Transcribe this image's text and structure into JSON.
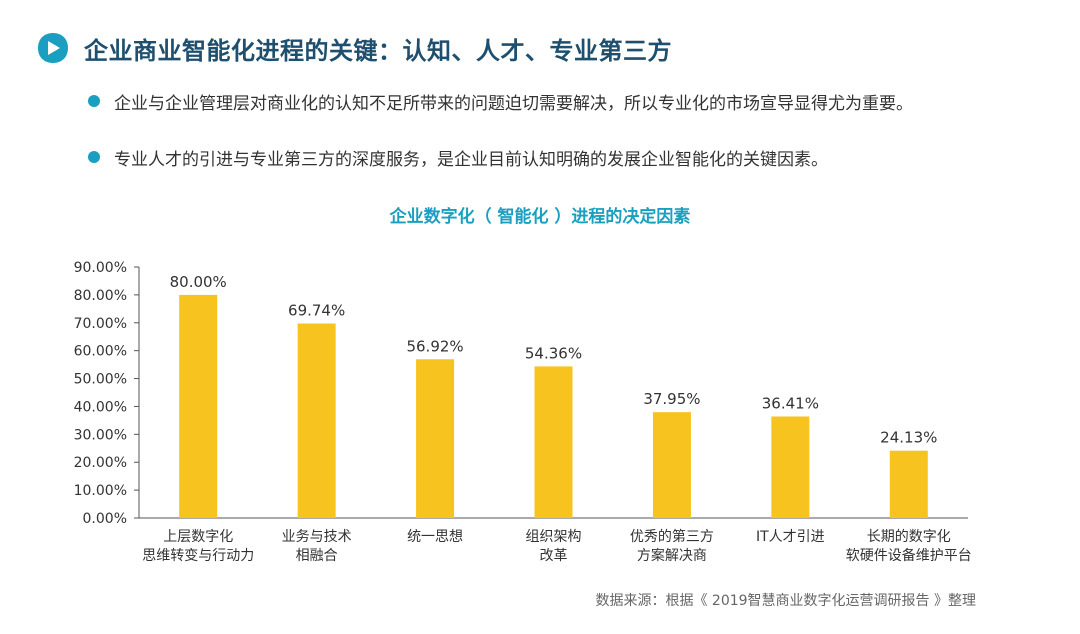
{
  "header": {
    "title": "企业商业智能化进程的关键：认知、人才、专业第三方",
    "icon": "play-badge-icon",
    "accent_color": "#1a9fc0"
  },
  "bullets": [
    {
      "text": "企业与企业管理层对商业化的认知不足所带来的问题迫切需要解决，所以专业化的市场宣导显得尤为重要。"
    },
    {
      "text": "专业人才的引进与专业第三方的深度服务，是企业目前认知明确的发展企业智能化的关键因素。"
    }
  ],
  "chart_data": {
    "type": "bar",
    "title": "企业数字化（ 智能化 ）进程的决定因素",
    "categories": [
      [
        "上层数字化",
        "思维转变与行动力"
      ],
      [
        "业务与技术",
        "相融合"
      ],
      [
        "统一思想"
      ],
      [
        "组织架构",
        "改革"
      ],
      [
        "优秀的第三方",
        "方案解决商"
      ],
      [
        "IT人才引进"
      ],
      [
        "长期的数字化",
        "软硬件设备维护平台"
      ]
    ],
    "values": [
      80.0,
      69.74,
      56.92,
      54.36,
      37.95,
      36.41,
      24.13
    ],
    "data_labels": [
      "80.00%",
      "69.74%",
      "56.92%",
      "54.36%",
      "37.95%",
      "36.41%",
      "24.13%"
    ],
    "y_ticks": [
      "0.00%",
      "10.00%",
      "20.00%",
      "30.00%",
      "40.00%",
      "50.00%",
      "60.00%",
      "70.00%",
      "80.00%",
      "90.00%"
    ],
    "ylim": [
      0,
      90
    ],
    "bar_color": "#f7c31f",
    "grid": false,
    "legend": "none"
  },
  "footer": {
    "source": "数据来源：根据《 2019智慧商业数字化运营调研报告 》整理"
  }
}
